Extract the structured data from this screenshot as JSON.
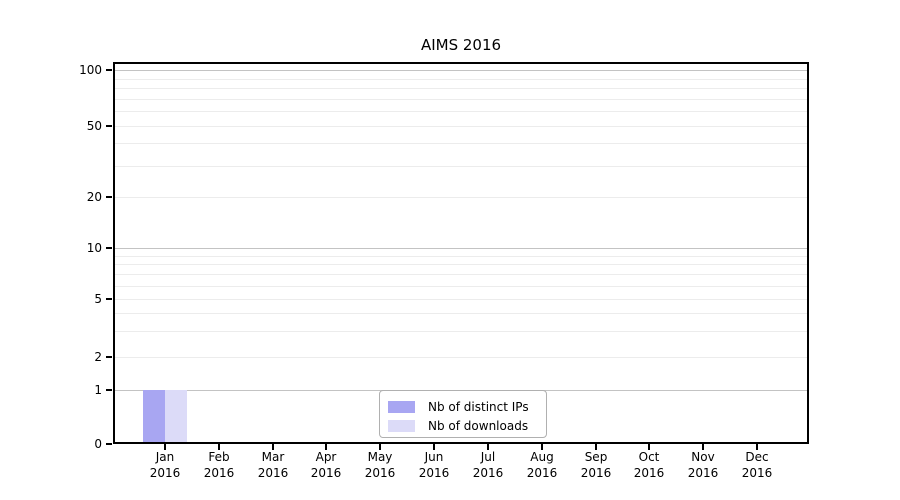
{
  "chart": {
    "title": "AIMS 2016",
    "y_axis": {
      "tick_labels": [
        0,
        1,
        2,
        5,
        10,
        20,
        50,
        100
      ],
      "major_gridlines": [
        1,
        10,
        100
      ],
      "minor_gridlines": [
        2,
        3,
        4,
        5,
        6,
        7,
        8,
        9,
        20,
        30,
        40,
        50,
        60,
        70,
        80,
        90
      ]
    },
    "x_axis": {
      "months": [
        "Jan",
        "Feb",
        "Mar",
        "Apr",
        "May",
        "Jun",
        "Jul",
        "Aug",
        "Sep",
        "Oct",
        "Nov",
        "Dec"
      ],
      "year_label": "2016"
    },
    "legend": [
      {
        "label": "Nb of distinct IPs",
        "color": "#a8a6f2"
      },
      {
        "label": "Nb of downloads",
        "color": "#dcdbf8"
      }
    ],
    "colors": {
      "axis": "#000000",
      "major_grid": "#c3c3c3",
      "minor_grid": "#ececec",
      "background": "#ffffff"
    }
  },
  "chart_data": {
    "type": "bar",
    "title": "AIMS 2016",
    "categories": [
      "Jan 2016",
      "Feb 2016",
      "Mar 2016",
      "Apr 2016",
      "May 2016",
      "Jun 2016",
      "Jul 2016",
      "Aug 2016",
      "Sep 2016",
      "Oct 2016",
      "Nov 2016",
      "Dec 2016"
    ],
    "series": [
      {
        "name": "Nb of distinct IPs",
        "color": "#a8a6f2",
        "values": [
          1,
          0,
          0,
          0,
          0,
          0,
          0,
          0,
          0,
          0,
          0,
          0
        ]
      },
      {
        "name": "Nb of downloads",
        "color": "#dcdbf8",
        "values": [
          1,
          0,
          0,
          0,
          0,
          0,
          0,
          0,
          0,
          0,
          0,
          0
        ]
      }
    ],
    "xlabel": "",
    "ylabel": "",
    "yscale": "log-like",
    "y_ticks": [
      0,
      1,
      2,
      5,
      10,
      20,
      50,
      100
    ],
    "ylim": [
      0,
      110
    ],
    "grid": "horizontal",
    "legend_position": "lower-center-inside"
  }
}
